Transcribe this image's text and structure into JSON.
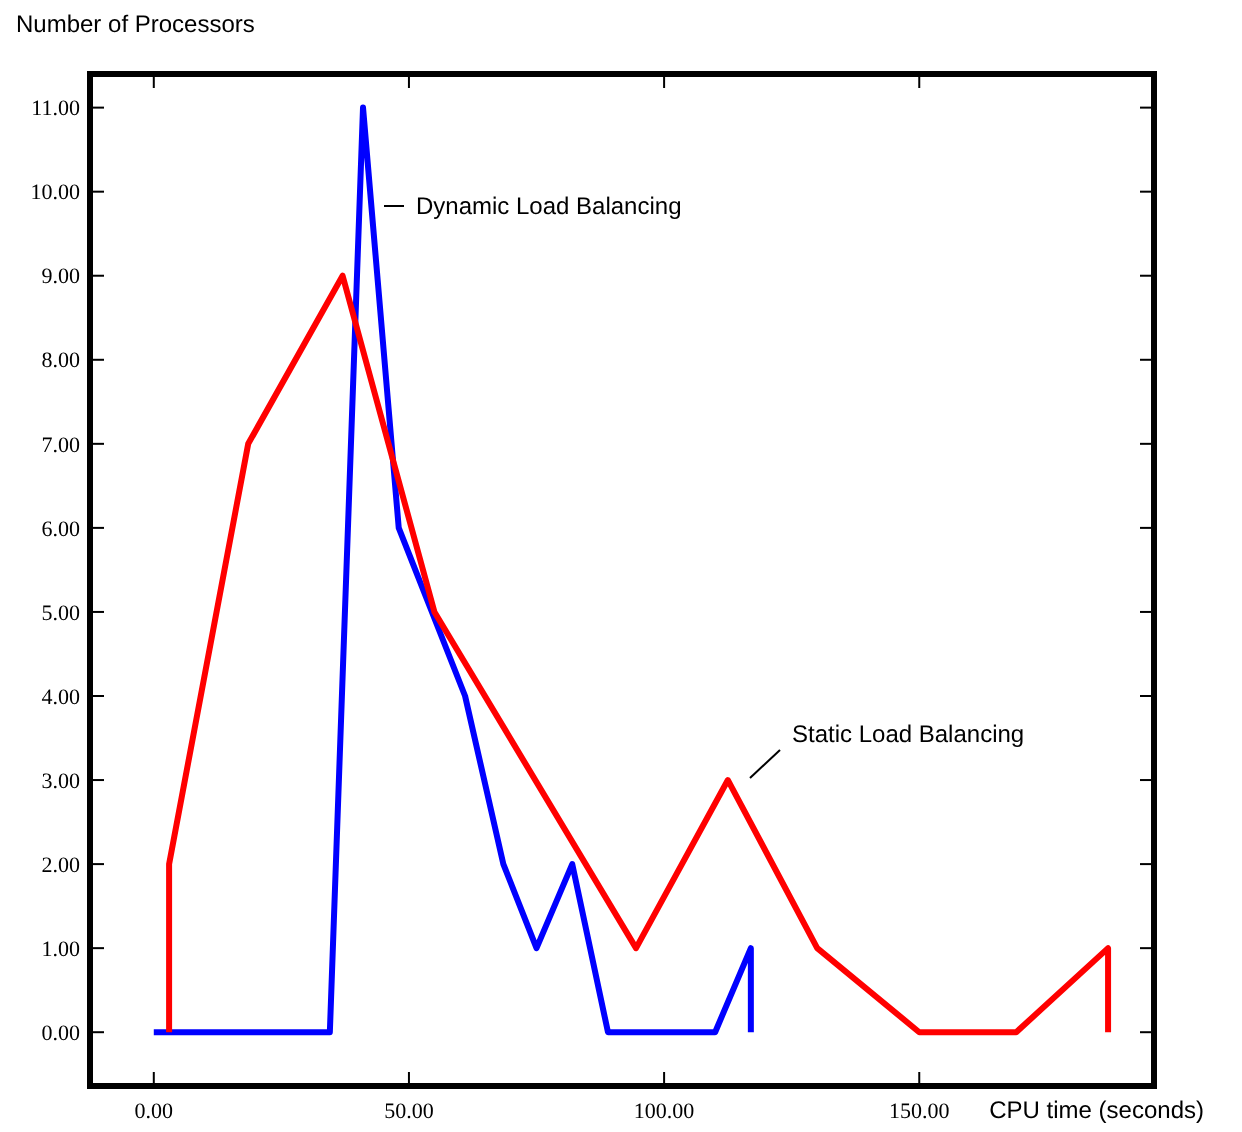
{
  "chart_data": {
    "type": "line",
    "xlabel": "CPU time (seconds)",
    "ylabel": "Number of Processors",
    "xlim": [
      -12.5,
      196
    ],
    "ylim": [
      -0.64,
      11.4
    ],
    "xticks": [
      {
        "value": 0,
        "label": "0.00"
      },
      {
        "value": 50,
        "label": "50.00"
      },
      {
        "value": 100,
        "label": "100.00"
      },
      {
        "value": 150,
        "label": "150.00"
      }
    ],
    "yticks": [
      {
        "value": 0,
        "label": "0.00"
      },
      {
        "value": 1,
        "label": "1.00"
      },
      {
        "value": 2,
        "label": "2.00"
      },
      {
        "value": 3,
        "label": "3.00"
      },
      {
        "value": 4,
        "label": "4.00"
      },
      {
        "value": 5,
        "label": "5.00"
      },
      {
        "value": 6,
        "label": "6.00"
      },
      {
        "value": 7,
        "label": "7.00"
      },
      {
        "value": 8,
        "label": "8.00"
      },
      {
        "value": 9,
        "label": "9.00"
      },
      {
        "value": 10,
        "label": "10.00"
      },
      {
        "value": 11,
        "label": "11.00"
      }
    ],
    "grid": false,
    "marker": "none",
    "line_style": "solid",
    "series": [
      {
        "color": "#0000ff",
        "x": [
          0,
          34.5,
          41,
          48,
          61,
          68.5,
          75,
          82,
          89,
          110,
          117,
          117
        ],
        "values": [
          0,
          0,
          11,
          6,
          4,
          2,
          1,
          2,
          0,
          0,
          1,
          0
        ]
      },
      {
        "color": "#ff0000",
        "x": [
          3,
          3,
          18.5,
          37,
          55,
          94.5,
          112.5,
          130,
          150,
          169,
          187,
          187
        ],
        "values": [
          0,
          2,
          7,
          9,
          5,
          1,
          3,
          1,
          0,
          0,
          1,
          0
        ]
      }
    ],
    "annotations": [
      "Dynamic Load Balancing",
      "Static Load Balancing"
    ]
  }
}
